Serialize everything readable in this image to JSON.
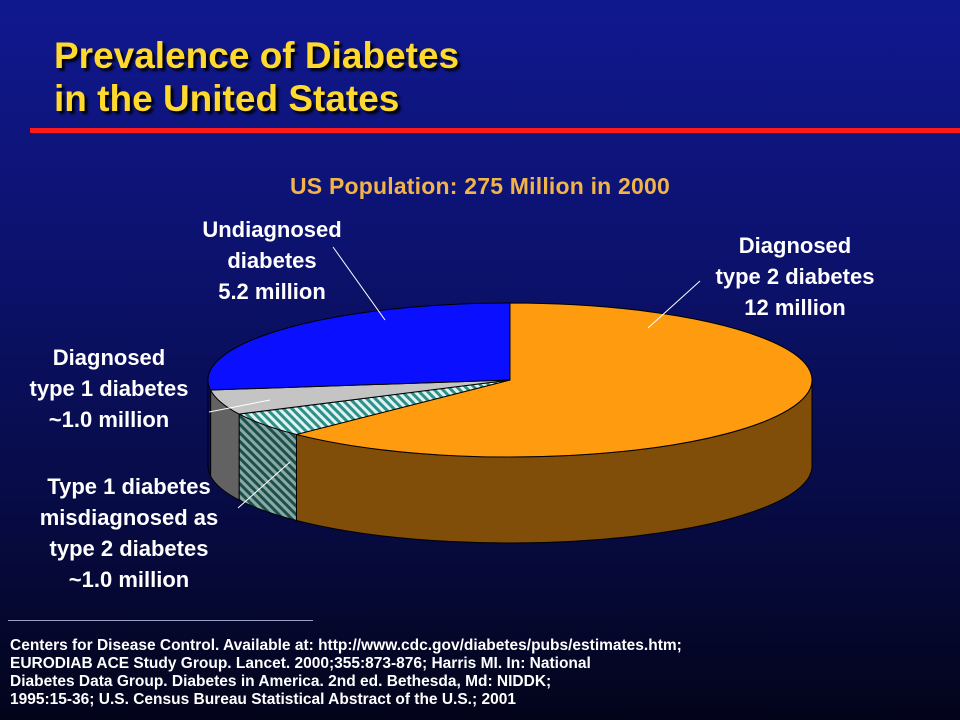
{
  "slide": {
    "title_line1": "Prevalence of Diabetes",
    "title_line2": "in the United States",
    "colors": {
      "background": "#0c126e",
      "title": "#ffd92e",
      "rule": "#ff1a1a",
      "subtitle": "#f2b44a",
      "text": "#ffffff"
    }
  },
  "chart_data": {
    "type": "pie",
    "style": "3d",
    "title": "US Population: 275 Million in 2000",
    "units": "million",
    "slices": [
      {
        "label_lines": [
          "Diagnosed",
          "type 2 diabetes",
          "12 million"
        ],
        "value": 12.0,
        "color": "#ff9b0f",
        "pattern": "solid"
      },
      {
        "label_lines": [
          "Type 1 diabetes",
          "misdiagnosed as",
          "type 2 diabetes",
          "~1.0 million"
        ],
        "value": 1.0,
        "color": "#3aa6a0",
        "pattern": "diagonal-hatch"
      },
      {
        "label_lines": [
          "Diagnosed",
          "type 1 diabetes",
          "~1.0 million"
        ],
        "value": 1.0,
        "color": "#c4c4c4",
        "pattern": "solid"
      },
      {
        "label_lines": [
          "Undiagnosed",
          "diabetes",
          "5.2 million"
        ],
        "value": 5.2,
        "color": "#0a10ff",
        "pattern": "solid"
      }
    ]
  },
  "sources": {
    "line1": "Centers for Disease Control. Available at: http://www.cdc.gov/diabetes/pubs/estimates.htm;",
    "line2": "EURODIAB ACE Study Group. Lancet. 2000;355:873-876; Harris MI. In: National",
    "line3": "Diabetes Data Group. Diabetes in America. 2nd ed. Bethesda, Md: NIDDK;",
    "line4": "1995:15-36; U.S. Census Bureau Statistical Abstract of the U.S.; 2001"
  }
}
